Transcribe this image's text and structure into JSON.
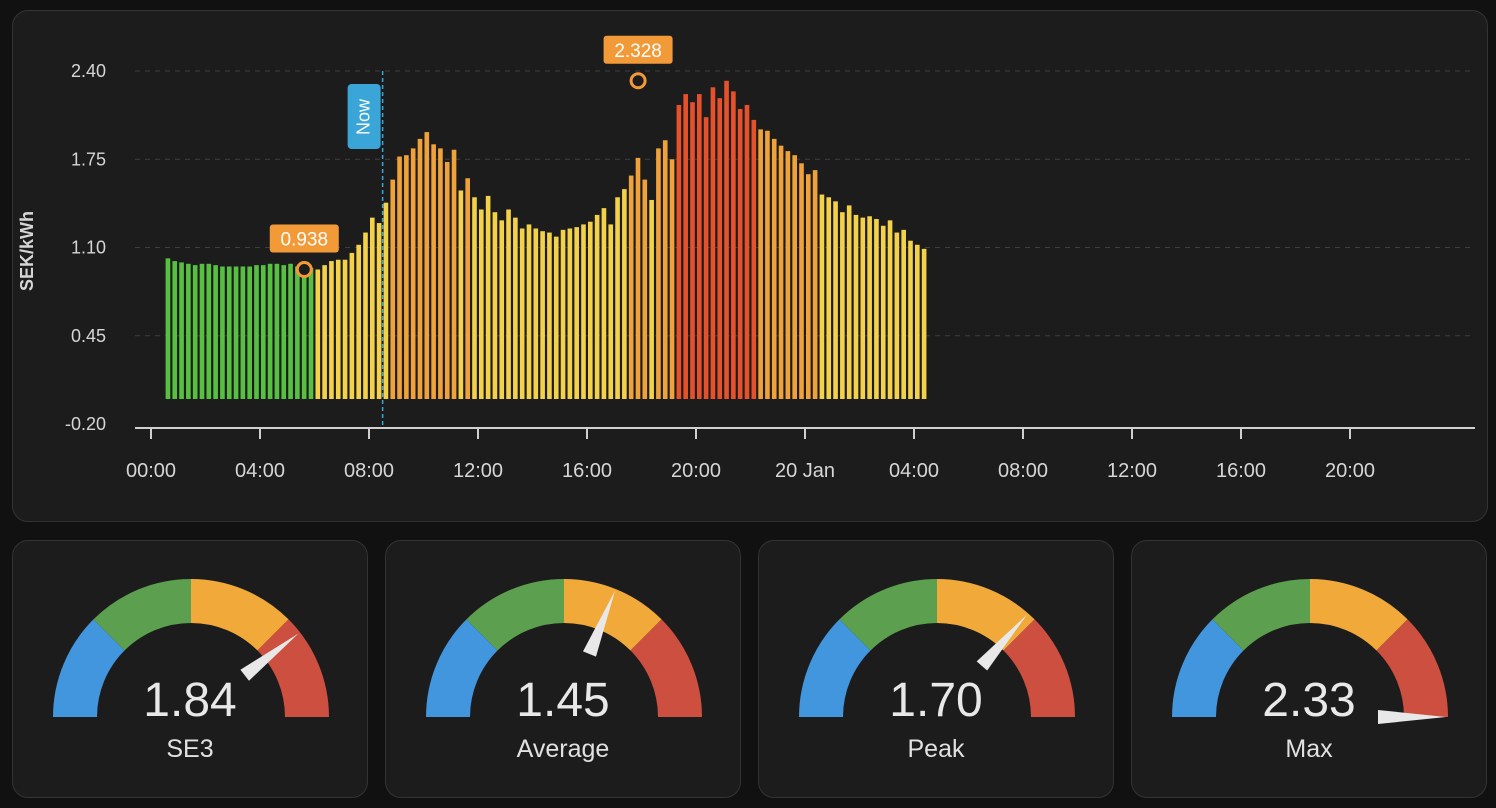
{
  "chart": {
    "y_axis_title": "SEK/kWh",
    "now_label": "Now",
    "min_marker_label": "0.938",
    "max_marker_label": "2.328",
    "y_tick_labels": [
      "2.40",
      "1.75",
      "1.10",
      "0.45",
      "-0.20"
    ],
    "x_tick_labels": [
      "00:00",
      "04:00",
      "08:00",
      "12:00",
      "16:00",
      "20:00",
      "20 Jan",
      "04:00",
      "08:00",
      "12:00",
      "16:00",
      "20:00"
    ]
  },
  "chart_data": {
    "type": "bar",
    "ylabel": "SEK/kWh",
    "ylim": [
      -0.2,
      2.4
    ],
    "xlim": [
      "00:00",
      "24:00 +1 day"
    ],
    "interval": "15 min",
    "start": "00:30",
    "grid": true,
    "now_marker": "08:30",
    "annotations": [
      {
        "label": "0.938",
        "x": "05:30",
        "y": 0.938
      },
      {
        "label": "2.328",
        "x": "17:45",
        "y": 2.328
      }
    ],
    "values": [
      1.02,
      1.0,
      0.99,
      0.98,
      0.97,
      0.98,
      0.98,
      0.97,
      0.96,
      0.96,
      0.96,
      0.96,
      0.96,
      0.97,
      0.97,
      0.98,
      0.98,
      0.97,
      0.98,
      0.96,
      0.97,
      0.95,
      0.938,
      0.97,
      1.0,
      1.01,
      1.01,
      1.06,
      1.12,
      1.21,
      1.32,
      1.28,
      1.43,
      1.6,
      1.77,
      1.78,
      1.83,
      1.9,
      1.95,
      1.86,
      1.83,
      1.73,
      1.82,
      1.52,
      1.61,
      1.47,
      1.38,
      1.48,
      1.36,
      1.3,
      1.38,
      1.32,
      1.24,
      1.27,
      1.24,
      1.22,
      1.21,
      1.18,
      1.23,
      1.24,
      1.25,
      1.27,
      1.29,
      1.34,
      1.39,
      1.27,
      1.47,
      1.53,
      1.63,
      1.76,
      1.6,
      1.45,
      1.83,
      1.89,
      1.75,
      2.15,
      2.23,
      2.17,
      2.23,
      2.06,
      2.28,
      2.2,
      2.328,
      2.25,
      2.12,
      2.15,
      2.04,
      1.97,
      1.96,
      1.9,
      1.85,
      1.81,
      1.78,
      1.72,
      1.64,
      1.67,
      1.49,
      1.47,
      1.44,
      1.36,
      1.41,
      1.34,
      1.32,
      1.33,
      1.31,
      1.26,
      1.3,
      1.21,
      1.23,
      1.15,
      1.12,
      1.09
    ]
  },
  "gauges": [
    {
      "value": "1.84",
      "name": "SE3",
      "level": 1.84
    },
    {
      "value": "1.45",
      "name": "Average",
      "level": 1.45
    },
    {
      "value": "1.70",
      "name": "Peak",
      "level": 1.7
    },
    {
      "value": "2.33",
      "name": "Max",
      "level": 2.33
    }
  ],
  "gauge_scale": {
    "min": 0,
    "max": 2.33
  },
  "colors": {
    "background": "#111111",
    "card": "#1c1c1c",
    "bar_low": "#58c041",
    "bar_mid": "#f3d24a",
    "bar_high": "#f0a23a",
    "bar_peak": "#e5512a",
    "now_line": "#3aa6d8",
    "marker": "#f29a38",
    "gauge_blue": "#4196de",
    "gauge_green": "#5b9f4f",
    "gauge_orange": "#f1a93a",
    "gauge_red": "#cd4f3f"
  }
}
